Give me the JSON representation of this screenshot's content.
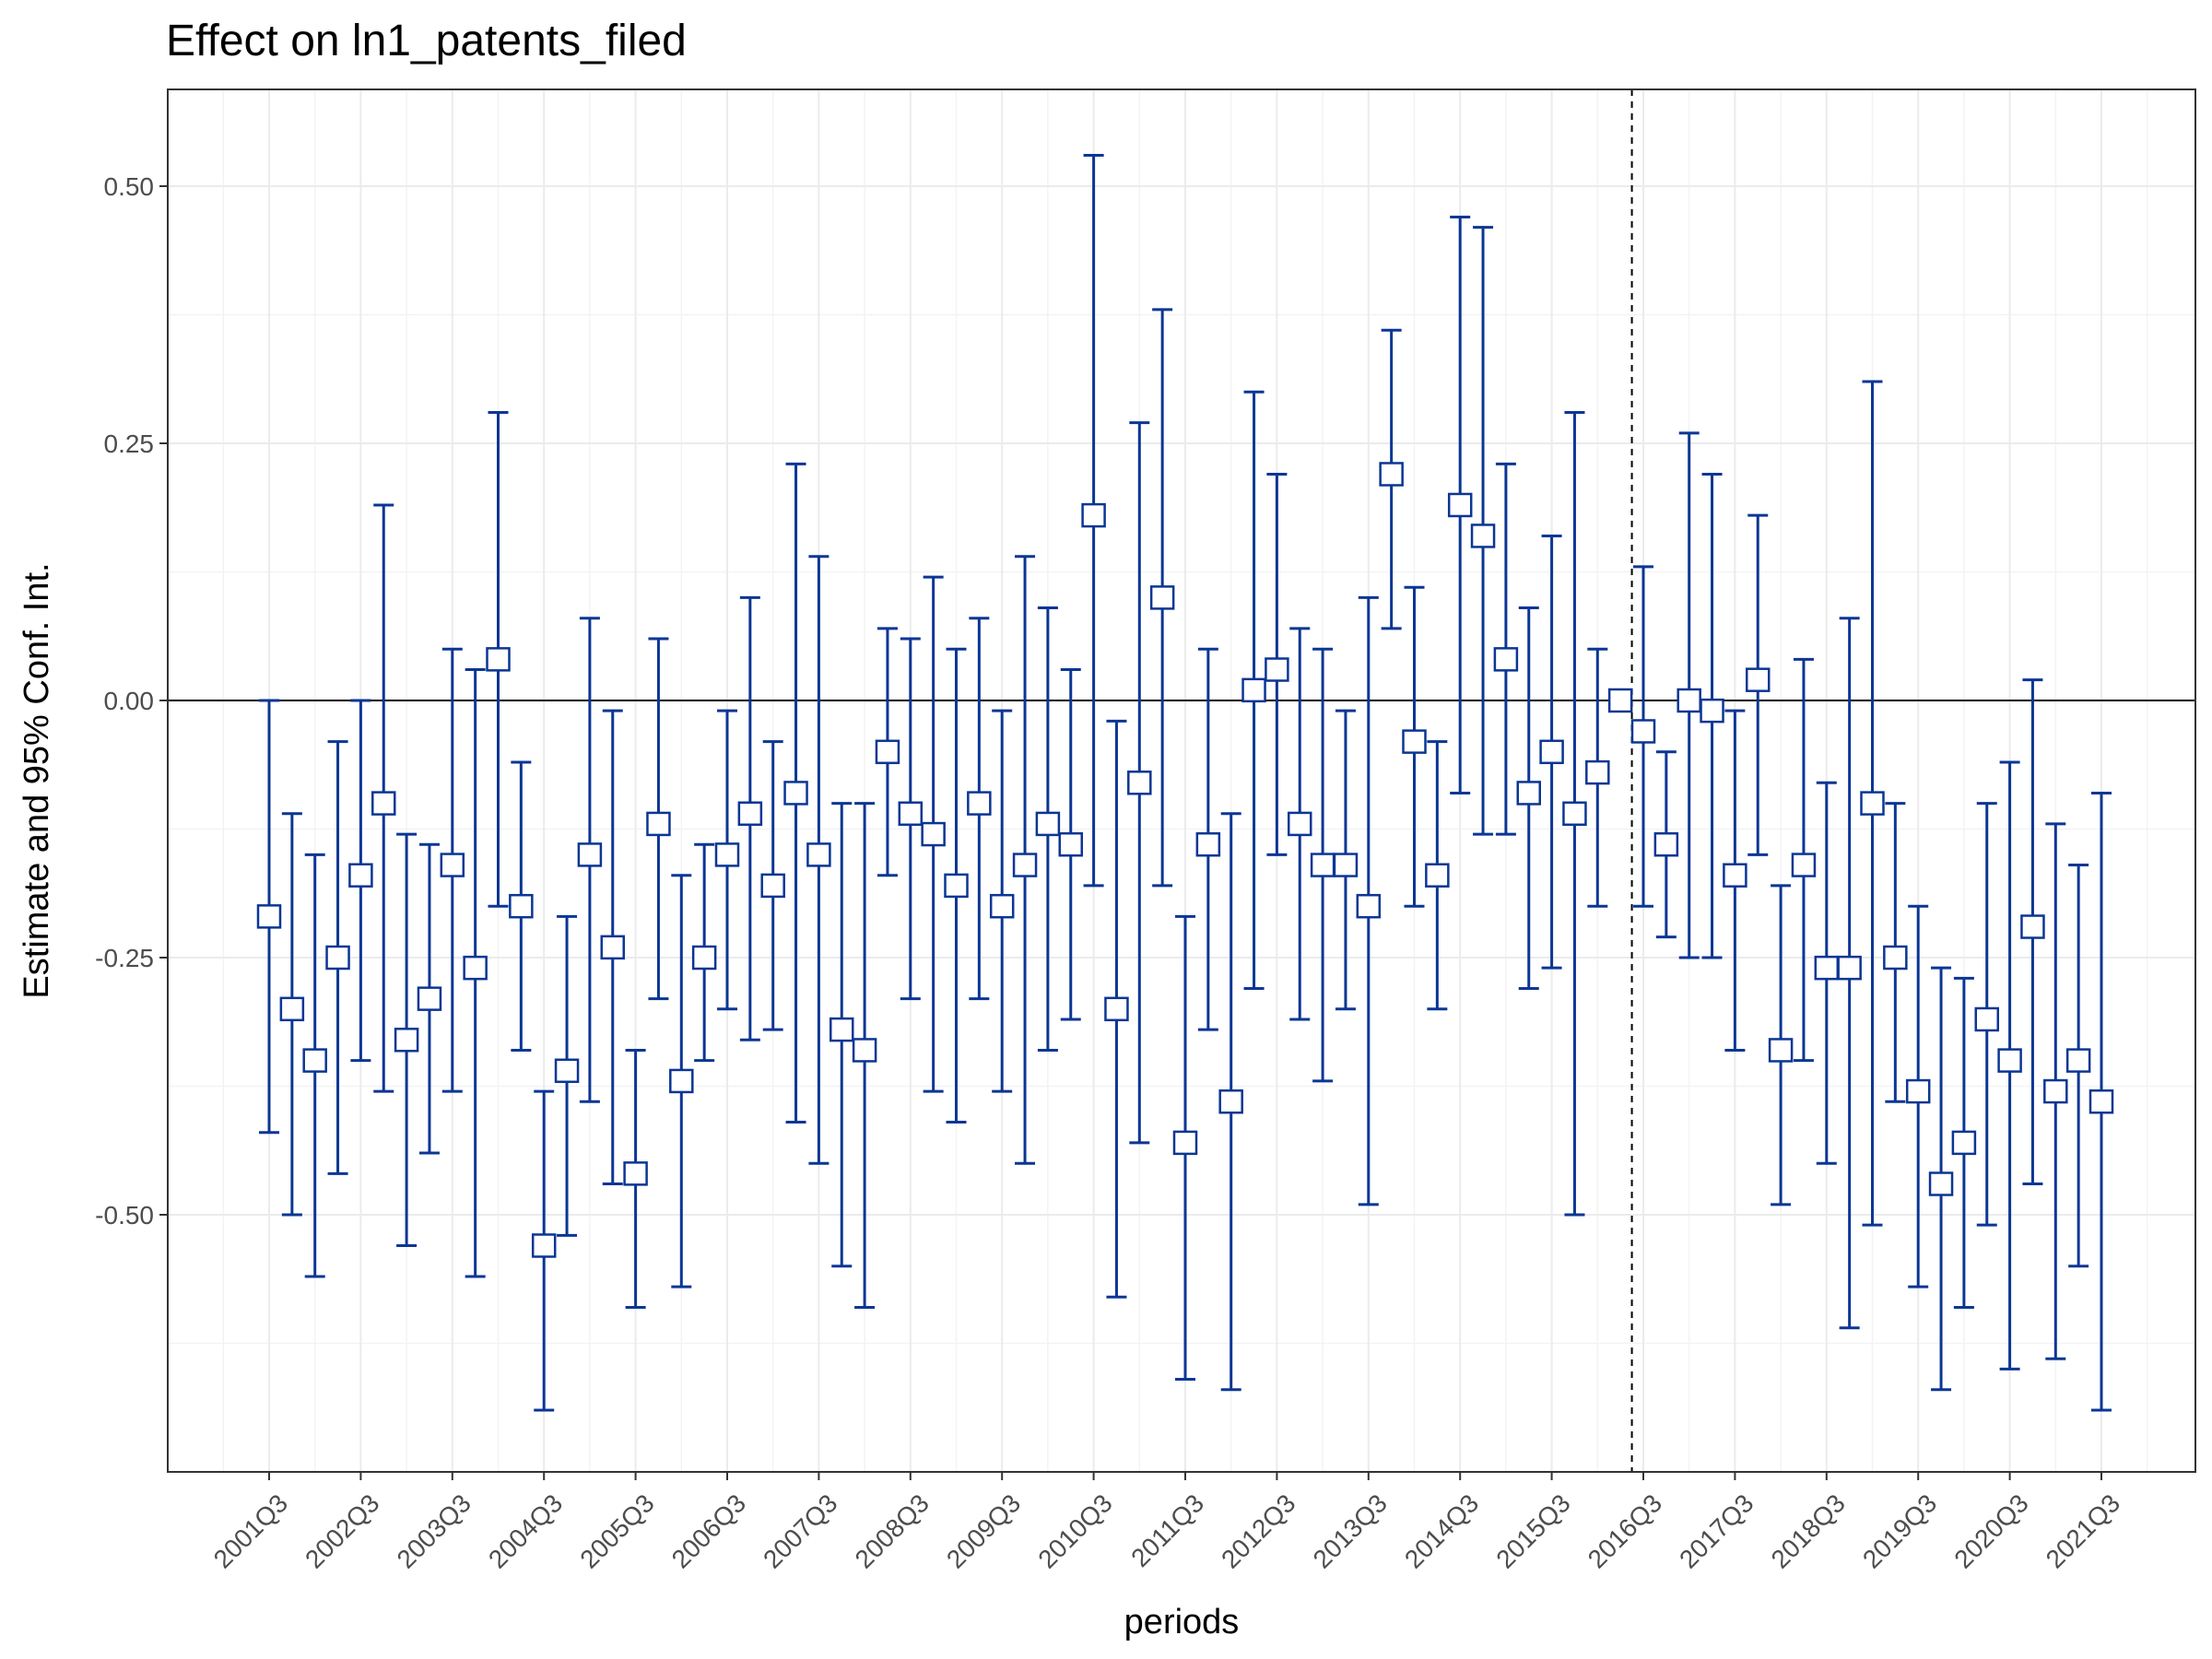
{
  "chart_data": {
    "type": "scatter",
    "title": "Effect on ln1_patents_filed",
    "xlabel": "periods",
    "ylabel": "Estimate and 95% Conf. Int.",
    "grid": true,
    "legend": "none",
    "colors": {
      "series": "#0b3694",
      "reference": "#000000",
      "grid": "#ebebeb",
      "minor_grid": "#f3f3f3"
    },
    "ylim": [
      -0.75,
      0.6
    ],
    "yticks": [
      -0.5,
      -0.25,
      0.0,
      0.25,
      0.5
    ],
    "ytick_labels": [
      "-0.50",
      "-0.25",
      "0.00",
      "0.25",
      "0.50"
    ],
    "xticks": [
      "2001Q3",
      "2002Q3",
      "2003Q3",
      "2004Q3",
      "2005Q3",
      "2006Q3",
      "2007Q3",
      "2008Q3",
      "2009Q3",
      "2010Q3",
      "2011Q3",
      "2012Q3",
      "2013Q3",
      "2014Q3",
      "2015Q3",
      "2016Q3",
      "2017Q3",
      "2018Q3",
      "2019Q3",
      "2020Q3",
      "2021Q3"
    ],
    "reference_lines": {
      "y_zero": 0,
      "dashed_x_between": [
        "2016Q2",
        "2016Q3"
      ]
    },
    "series": [
      {
        "x": [
          "2001Q3",
          "2001Q4",
          "2002Q1",
          "2002Q2",
          "2002Q3",
          "2002Q4",
          "2003Q1",
          "2003Q2",
          "2003Q3",
          "2003Q4",
          "2004Q1",
          "2004Q2",
          "2004Q3",
          "2004Q4",
          "2005Q1",
          "2005Q2",
          "2005Q3",
          "2005Q4",
          "2006Q1",
          "2006Q2",
          "2006Q3",
          "2006Q4",
          "2007Q1",
          "2007Q2",
          "2007Q3",
          "2007Q4",
          "2008Q1",
          "2008Q2",
          "2008Q3",
          "2008Q4",
          "2009Q1",
          "2009Q2",
          "2009Q3",
          "2009Q4",
          "2010Q1",
          "2010Q2",
          "2010Q3",
          "2010Q4",
          "2011Q1",
          "2011Q2",
          "2011Q3",
          "2011Q4",
          "2012Q1",
          "2012Q2",
          "2012Q3",
          "2012Q4",
          "2013Q1",
          "2013Q2",
          "2013Q3",
          "2013Q4",
          "2014Q1",
          "2014Q2",
          "2014Q3",
          "2014Q4",
          "2015Q1",
          "2015Q2",
          "2015Q3",
          "2015Q4",
          "2016Q1",
          "2016Q2",
          "2016Q3",
          "2016Q4",
          "2017Q1",
          "2017Q2",
          "2017Q3",
          "2017Q4",
          "2018Q1",
          "2018Q2",
          "2018Q3",
          "2018Q4",
          "2019Q1",
          "2019Q2",
          "2019Q3",
          "2019Q4",
          "2020Q1",
          "2020Q2",
          "2020Q3",
          "2020Q4",
          "2021Q1",
          "2021Q2",
          "2021Q3"
        ],
        "estimate": [
          -0.21,
          -0.3,
          -0.35,
          -0.25,
          -0.17,
          -0.1,
          -0.33,
          -0.29,
          -0.16,
          -0.26,
          0.04,
          -0.2,
          -0.53,
          -0.36,
          -0.15,
          -0.24,
          -0.46,
          -0.12,
          -0.37,
          -0.25,
          -0.15,
          -0.11,
          -0.18,
          -0.09,
          -0.15,
          -0.32,
          -0.34,
          -0.05,
          -0.11,
          -0.13,
          -0.18,
          -0.1,
          -0.2,
          -0.16,
          -0.12,
          -0.14,
          0.18,
          -0.3,
          -0.08,
          0.1,
          -0.43,
          -0.14,
          -0.39,
          0.01,
          0.03,
          -0.12,
          -0.16,
          -0.16,
          -0.2,
          0.22,
          -0.04,
          -0.17,
          0.19,
          0.16,
          0.04,
          -0.09,
          -0.05,
          -0.11,
          -0.07,
          0.0,
          -0.03,
          -0.14,
          0.0,
          -0.01,
          -0.17,
          0.02,
          -0.34,
          -0.16,
          -0.26,
          -0.26,
          -0.1,
          -0.25,
          -0.38,
          -0.47,
          -0.43,
          -0.31,
          -0.35,
          -0.22,
          -0.38,
          -0.35,
          -0.39
        ],
        "lower": [
          -0.42,
          -0.5,
          -0.56,
          -0.46,
          -0.35,
          -0.38,
          -0.53,
          -0.44,
          -0.38,
          -0.56,
          -0.2,
          -0.34,
          -0.69,
          -0.52,
          -0.39,
          -0.47,
          -0.59,
          -0.29,
          -0.57,
          -0.35,
          -0.3,
          -0.33,
          -0.32,
          -0.41,
          -0.45,
          -0.55,
          -0.59,
          -0.17,
          -0.29,
          -0.38,
          -0.41,
          -0.29,
          -0.38,
          -0.45,
          -0.34,
          -0.31,
          -0.18,
          -0.58,
          -0.43,
          -0.18,
          -0.66,
          -0.32,
          -0.67,
          -0.28,
          -0.15,
          -0.31,
          -0.37,
          -0.3,
          -0.49,
          0.07,
          -0.2,
          -0.3,
          -0.09,
          -0.13,
          -0.13,
          -0.28,
          -0.26,
          -0.5,
          -0.2,
          0.0,
          -0.2,
          -0.23,
          -0.25,
          -0.25,
          -0.34,
          -0.15,
          -0.49,
          -0.35,
          -0.45,
          -0.61,
          -0.51,
          -0.39,
          -0.57,
          -0.67,
          -0.59,
          -0.51,
          -0.65,
          -0.47,
          -0.64,
          -0.55,
          -0.69
        ],
        "upper": [
          0.0,
          -0.11,
          -0.15,
          -0.04,
          0.0,
          0.19,
          -0.13,
          -0.14,
          0.05,
          0.03,
          0.28,
          -0.06,
          -0.38,
          -0.21,
          0.08,
          -0.01,
          -0.34,
          0.06,
          -0.17,
          -0.14,
          -0.01,
          0.1,
          -0.04,
          0.23,
          0.14,
          -0.1,
          -0.1,
          0.07,
          0.06,
          0.12,
          0.05,
          0.08,
          -0.01,
          0.14,
          0.09,
          0.03,
          0.53,
          -0.02,
          0.27,
          0.38,
          -0.21,
          0.05,
          -0.11,
          0.3,
          0.22,
          0.07,
          0.05,
          -0.01,
          0.1,
          0.36,
          0.11,
          -0.04,
          0.47,
          0.46,
          0.23,
          0.09,
          0.16,
          0.28,
          0.05,
          0.0,
          0.13,
          -0.05,
          0.26,
          0.22,
          -0.01,
          0.18,
          -0.18,
          0.04,
          -0.08,
          0.08,
          0.31,
          -0.1,
          -0.2,
          -0.26,
          -0.27,
          -0.1,
          -0.06,
          0.02,
          -0.12,
          -0.16,
          -0.09
        ]
      }
    ]
  }
}
